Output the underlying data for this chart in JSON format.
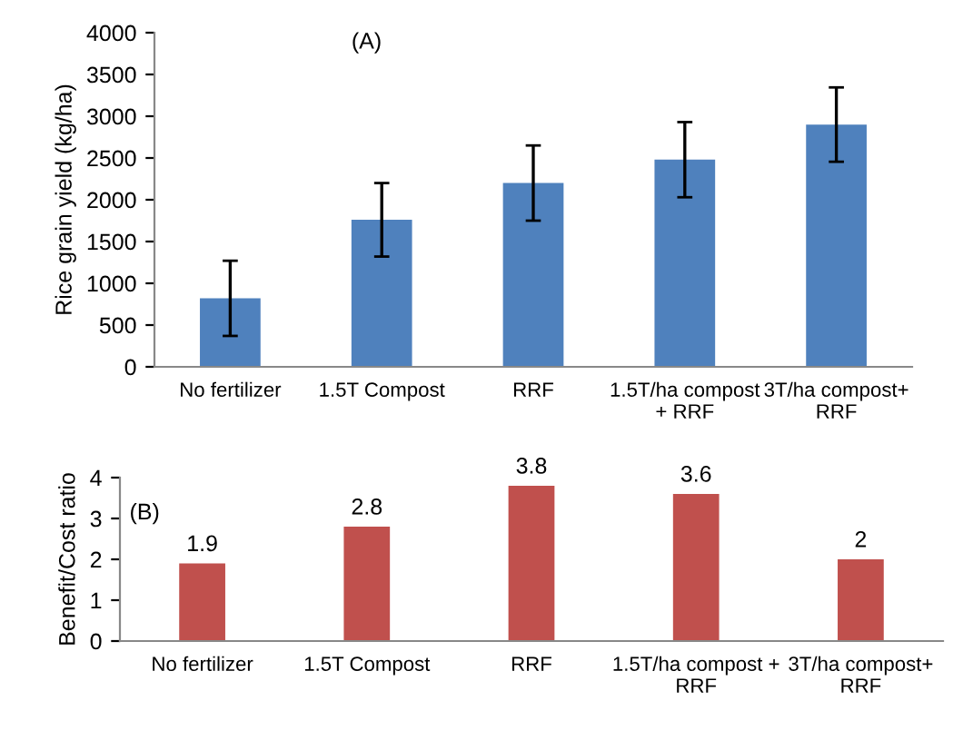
{
  "chart_data": [
    {
      "type": "bar",
      "ylabel": "Rice grain yield (kg/ha)",
      "annotations": [
        "(A)"
      ],
      "categories": [
        "No fertilizer",
        "1.5T Compost",
        "RRF",
        "1.5T/ha compost\n+ RRF",
        "3T/ha compost+\nRRF"
      ],
      "values": [
        820,
        1760,
        2200,
        2480,
        2900
      ],
      "errors": [
        450,
        440,
        450,
        450,
        445
      ],
      "color": "#4f81bd",
      "ylim": [
        0,
        4000
      ],
      "yticks": [
        0,
        500,
        1000,
        1500,
        2000,
        2500,
        3000,
        3500,
        4000
      ],
      "grid": false
    },
    {
      "type": "bar",
      "ylabel": "Benefit/Cost ratio",
      "annotations": [
        "(B)"
      ],
      "categories": [
        "No fertilizer",
        "1.5T Compost",
        "RRF",
        "1.5T/ha compost +\nRRF",
        "3T/ha compost+\nRRF"
      ],
      "values": [
        1.9,
        2.8,
        3.8,
        3.6,
        2
      ],
      "color": "#c0504d",
      "data_labels": true,
      "ylim": [
        0,
        4
      ],
      "yticks": [
        0,
        1,
        2,
        3,
        4
      ],
      "grid": false
    }
  ]
}
